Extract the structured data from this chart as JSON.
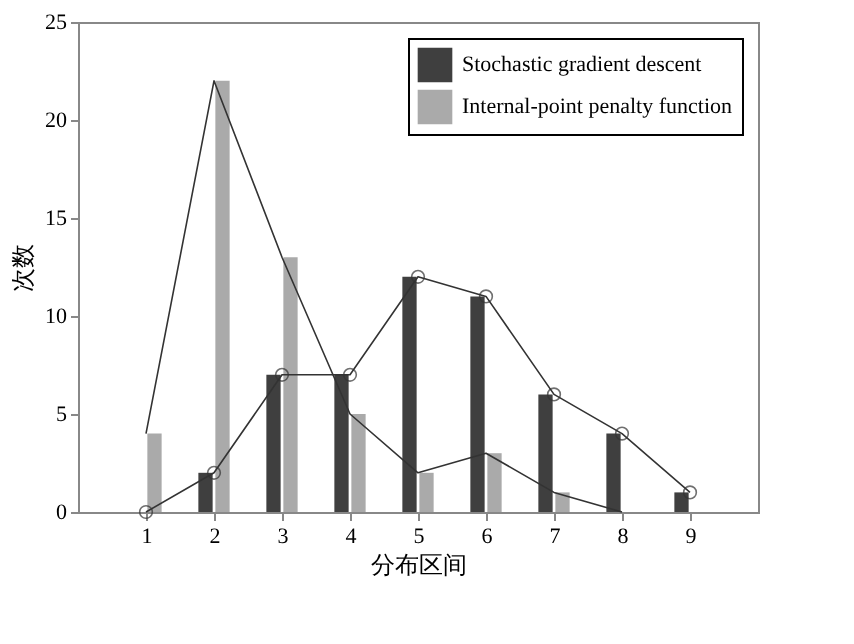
{
  "chart_data": {
    "type": "bar",
    "xlabel": "分布区间",
    "ylabel": "次数",
    "x": [
      1,
      2,
      3,
      4,
      5,
      6,
      7,
      8,
      9
    ],
    "series": [
      {
        "name": "Stochastic gradient descent",
        "color": "#3f3f3f",
        "values": [
          0,
          2,
          7,
          7,
          12,
          11,
          6,
          4,
          1
        ]
      },
      {
        "name": "Internal-point penalty function",
        "color": "#aaaaaa",
        "values": [
          4,
          22,
          13,
          5,
          2,
          3,
          1,
          0,
          0
        ]
      },
      {
        "type": "line",
        "color": "#333333",
        "marker": "circle",
        "values": [
          0,
          2,
          7,
          7,
          12,
          11,
          6,
          4,
          1
        ]
      },
      {
        "type": "line",
        "color": "#333333",
        "marker": "none",
        "values": [
          4,
          22,
          13,
          5,
          2,
          3,
          1,
          0,
          null
        ]
      }
    ],
    "xlim": [
      0,
      10
    ],
    "xticks": [
      1,
      2,
      3,
      4,
      5,
      6,
      7,
      8,
      9
    ],
    "ylim": [
      0,
      25
    ],
    "yticks": [
      0,
      5,
      10,
      15,
      20,
      25
    ],
    "grid": false,
    "legend": "top right"
  }
}
